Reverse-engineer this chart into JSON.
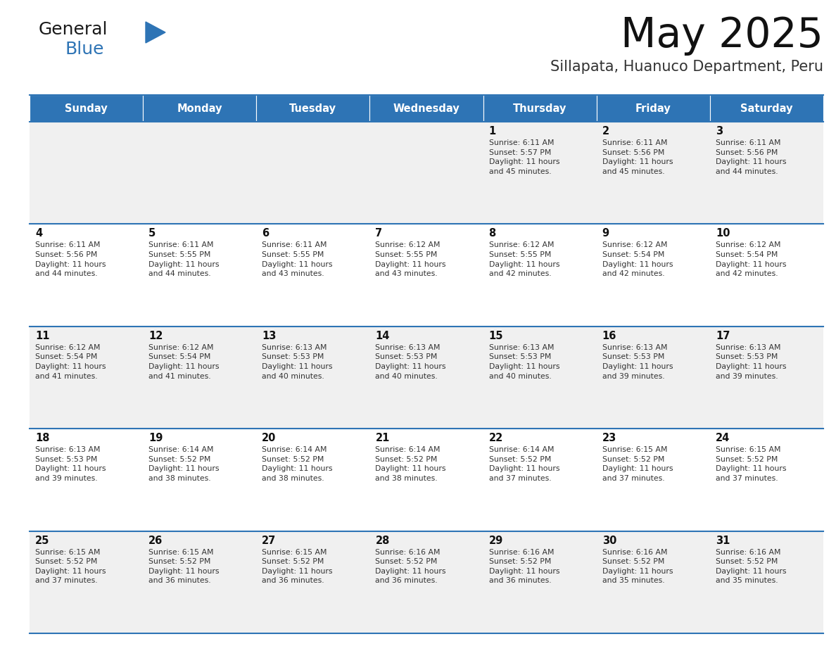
{
  "title": "May 2025",
  "subtitle": "Sillapata, Huanuco Department, Peru",
  "header_bg": "#2E74B5",
  "header_text_color": "#FFFFFF",
  "cell_bg_odd": "#F0F0F0",
  "cell_bg_even": "#FFFFFF",
  "border_color": "#2E74B5",
  "days_of_week": [
    "Sunday",
    "Monday",
    "Tuesday",
    "Wednesday",
    "Thursday",
    "Friday",
    "Saturday"
  ],
  "calendar_data": [
    [
      null,
      null,
      null,
      null,
      {
        "day": 1,
        "sunrise": "6:11 AM",
        "sunset": "5:57 PM",
        "daylight": "11 hours\nand 45 minutes."
      },
      {
        "day": 2,
        "sunrise": "6:11 AM",
        "sunset": "5:56 PM",
        "daylight": "11 hours\nand 45 minutes."
      },
      {
        "day": 3,
        "sunrise": "6:11 AM",
        "sunset": "5:56 PM",
        "daylight": "11 hours\nand 44 minutes."
      }
    ],
    [
      {
        "day": 4,
        "sunrise": "6:11 AM",
        "sunset": "5:56 PM",
        "daylight": "11 hours\nand 44 minutes."
      },
      {
        "day": 5,
        "sunrise": "6:11 AM",
        "sunset": "5:55 PM",
        "daylight": "11 hours\nand 44 minutes."
      },
      {
        "day": 6,
        "sunrise": "6:11 AM",
        "sunset": "5:55 PM",
        "daylight": "11 hours\nand 43 minutes."
      },
      {
        "day": 7,
        "sunrise": "6:12 AM",
        "sunset": "5:55 PM",
        "daylight": "11 hours\nand 43 minutes."
      },
      {
        "day": 8,
        "sunrise": "6:12 AM",
        "sunset": "5:55 PM",
        "daylight": "11 hours\nand 42 minutes."
      },
      {
        "day": 9,
        "sunrise": "6:12 AM",
        "sunset": "5:54 PM",
        "daylight": "11 hours\nand 42 minutes."
      },
      {
        "day": 10,
        "sunrise": "6:12 AM",
        "sunset": "5:54 PM",
        "daylight": "11 hours\nand 42 minutes."
      }
    ],
    [
      {
        "day": 11,
        "sunrise": "6:12 AM",
        "sunset": "5:54 PM",
        "daylight": "11 hours\nand 41 minutes."
      },
      {
        "day": 12,
        "sunrise": "6:12 AM",
        "sunset": "5:54 PM",
        "daylight": "11 hours\nand 41 minutes."
      },
      {
        "day": 13,
        "sunrise": "6:13 AM",
        "sunset": "5:53 PM",
        "daylight": "11 hours\nand 40 minutes."
      },
      {
        "day": 14,
        "sunrise": "6:13 AM",
        "sunset": "5:53 PM",
        "daylight": "11 hours\nand 40 minutes."
      },
      {
        "day": 15,
        "sunrise": "6:13 AM",
        "sunset": "5:53 PM",
        "daylight": "11 hours\nand 40 minutes."
      },
      {
        "day": 16,
        "sunrise": "6:13 AM",
        "sunset": "5:53 PM",
        "daylight": "11 hours\nand 39 minutes."
      },
      {
        "day": 17,
        "sunrise": "6:13 AM",
        "sunset": "5:53 PM",
        "daylight": "11 hours\nand 39 minutes."
      }
    ],
    [
      {
        "day": 18,
        "sunrise": "6:13 AM",
        "sunset": "5:53 PM",
        "daylight": "11 hours\nand 39 minutes."
      },
      {
        "day": 19,
        "sunrise": "6:14 AM",
        "sunset": "5:52 PM",
        "daylight": "11 hours\nand 38 minutes."
      },
      {
        "day": 20,
        "sunrise": "6:14 AM",
        "sunset": "5:52 PM",
        "daylight": "11 hours\nand 38 minutes."
      },
      {
        "day": 21,
        "sunrise": "6:14 AM",
        "sunset": "5:52 PM",
        "daylight": "11 hours\nand 38 minutes."
      },
      {
        "day": 22,
        "sunrise": "6:14 AM",
        "sunset": "5:52 PM",
        "daylight": "11 hours\nand 37 minutes."
      },
      {
        "day": 23,
        "sunrise": "6:15 AM",
        "sunset": "5:52 PM",
        "daylight": "11 hours\nand 37 minutes."
      },
      {
        "day": 24,
        "sunrise": "6:15 AM",
        "sunset": "5:52 PM",
        "daylight": "11 hours\nand 37 minutes."
      }
    ],
    [
      {
        "day": 25,
        "sunrise": "6:15 AM",
        "sunset": "5:52 PM",
        "daylight": "11 hours\nand 37 minutes."
      },
      {
        "day": 26,
        "sunrise": "6:15 AM",
        "sunset": "5:52 PM",
        "daylight": "11 hours\nand 36 minutes."
      },
      {
        "day": 27,
        "sunrise": "6:15 AM",
        "sunset": "5:52 PM",
        "daylight": "11 hours\nand 36 minutes."
      },
      {
        "day": 28,
        "sunrise": "6:16 AM",
        "sunset": "5:52 PM",
        "daylight": "11 hours\nand 36 minutes."
      },
      {
        "day": 29,
        "sunrise": "6:16 AM",
        "sunset": "5:52 PM",
        "daylight": "11 hours\nand 36 minutes."
      },
      {
        "day": 30,
        "sunrise": "6:16 AM",
        "sunset": "5:52 PM",
        "daylight": "11 hours\nand 35 minutes."
      },
      {
        "day": 31,
        "sunrise": "6:16 AM",
        "sunset": "5:52 PM",
        "daylight": "11 hours\nand 35 minutes."
      }
    ]
  ],
  "logo_text1": "General",
  "logo_text2": "Blue",
  "logo_color1": "#1a1a1a",
  "logo_color2": "#2E74B5",
  "fig_width": 11.88,
  "fig_height": 9.18,
  "dpi": 100
}
